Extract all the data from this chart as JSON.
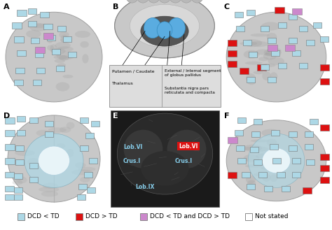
{
  "background_color": "#ffffff",
  "legend_items": [
    {
      "label": "DCD < TD",
      "color": "#add8e6",
      "edgecolor": "#888888"
    },
    {
      "label": "DCD > TD",
      "color": "#dd1111",
      "edgecolor": "#888888"
    },
    {
      "label": "DCD < TD and DCD > TD",
      "color": "#cc88cc",
      "edgecolor": "#888888"
    },
    {
      "label": "Not stated",
      "color": "#ffffff",
      "edgecolor": "#888888"
    }
  ],
  "figure_width": 4.74,
  "figure_height": 3.29,
  "dpi": 100,
  "legend_fontsize": 6.5,
  "panel_label_fontsize": 8,
  "brain_gray": "#c0c0c0",
  "brain_dark": "#909090",
  "brain_darker": "#787878",
  "brain_mid": "#b0b0b0",
  "blue": "#add8e6",
  "red": "#dd1111",
  "purple": "#cc88cc",
  "subcortical_bg": "#d8d8d8",
  "subcortical_dark": "#303030",
  "subcortical_inner": "#505050",
  "subcortical_blue": "#6bb8d8",
  "box_bg": "#dddddd"
}
